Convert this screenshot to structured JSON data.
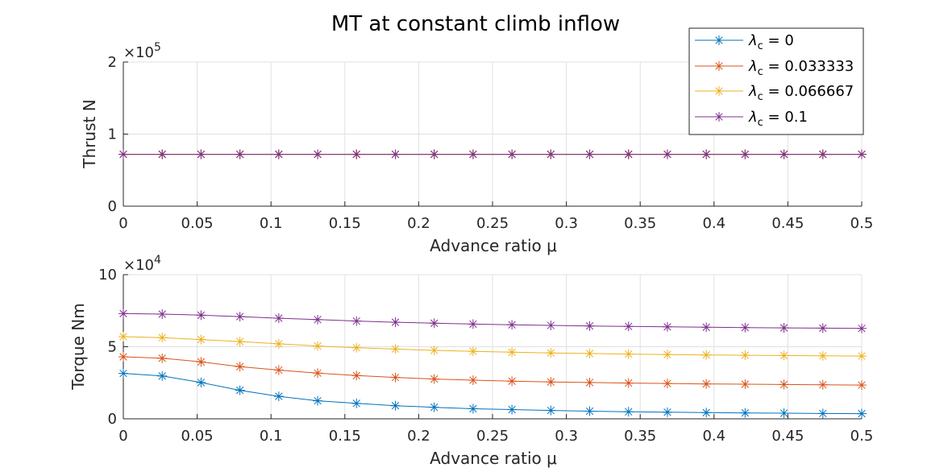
{
  "chart_data": {
    "title": "MT at constant climb inflow",
    "legend": {
      "location": "top-right",
      "entries": [
        {
          "symbol": "λ",
          "subscript": "c",
          "rest": " = 0"
        },
        {
          "symbol": "λ",
          "subscript": "c",
          "rest": " = 0.033333"
        },
        {
          "symbol": "λ",
          "subscript": "c",
          "rest": " = 0.066667"
        },
        {
          "symbol": "λ",
          "subscript": "c",
          "rest": " = 0.1"
        }
      ]
    },
    "colors": [
      "#0072BD",
      "#D95319",
      "#EDB120",
      "#7E2F8E"
    ],
    "marker": "asterisk",
    "x": [
      0,
      0.026316,
      0.052632,
      0.078947,
      0.105263,
      0.131579,
      0.157895,
      0.184211,
      0.210526,
      0.236842,
      0.263158,
      0.289474,
      0.315789,
      0.342105,
      0.368421,
      0.394737,
      0.421053,
      0.447368,
      0.473684,
      0.5
    ],
    "xticks": [
      "0",
      "0.05",
      "0.1",
      "0.15",
      "0.2",
      "0.25",
      "0.3",
      "0.35",
      "0.4",
      "0.45",
      "0.5"
    ],
    "xlim": [
      0,
      0.5
    ],
    "grid": true,
    "panels": [
      {
        "type": "line",
        "ylabel": "Thrust N",
        "xlabel": "Advance ratio μ",
        "ylim": [
          0,
          200000
        ],
        "yticks": [
          "0",
          "1",
          "2"
        ],
        "yexp_base": "×10",
        "yexp_power": "5",
        "series": [
          {
            "name": "λc = 0",
            "values": [
              72000,
              72000,
              72000,
              72000,
              72000,
              72000,
              72000,
              72000,
              72000,
              72000,
              72000,
              72000,
              72000,
              72000,
              72000,
              72000,
              72000,
              72000,
              72000,
              72000
            ]
          },
          {
            "name": "λc = 0.033333",
            "values": [
              72000,
              72000,
              72000,
              72000,
              72000,
              72000,
              72000,
              72000,
              72000,
              72000,
              72000,
              72000,
              72000,
              72000,
              72000,
              72000,
              72000,
              72000,
              72000,
              72000
            ]
          },
          {
            "name": "λc = 0.066667",
            "values": [
              72000,
              72000,
              72000,
              72000,
              72000,
              72000,
              72000,
              72000,
              72000,
              72000,
              72000,
              72000,
              72000,
              72000,
              72000,
              72000,
              72000,
              72000,
              72000,
              72000
            ]
          },
          {
            "name": "λc = 0.1",
            "values": [
              72000,
              72000,
              72000,
              72000,
              72000,
              72000,
              72000,
              72000,
              72000,
              72000,
              72000,
              72000,
              72000,
              72000,
              72000,
              72000,
              72000,
              72000,
              72000,
              72000
            ]
          }
        ]
      },
      {
        "type": "line",
        "ylabel": "Torque Nm",
        "xlabel": "Advance ratio μ",
        "ylim": [
          0,
          100000
        ],
        "yticks": [
          "0",
          "5",
          "10"
        ],
        "yexp_base": "×10",
        "yexp_power": "4",
        "series": [
          {
            "name": "λc = 0",
            "values": [
              31500,
              29700,
              25200,
              19800,
              15600,
              12500,
              10700,
              9100,
              8000,
              7000,
              6400,
              5800,
              5300,
              4900,
              4600,
              4300,
              4100,
              3900,
              3700,
              3600
            ]
          },
          {
            "name": "λc = 0.033333",
            "values": [
              43000,
              42000,
              39500,
              36200,
              33800,
              31700,
              30000,
              28700,
              27600,
              26800,
              26100,
              25600,
              25200,
              24800,
              24500,
              24200,
              24000,
              23800,
              23600,
              23400
            ]
          },
          {
            "name": "λc = 0.066667",
            "values": [
              57000,
              56300,
              55000,
              53600,
              52000,
              50500,
              49300,
              48400,
              47500,
              46800,
              46200,
              45700,
              45300,
              44900,
              44600,
              44300,
              44100,
              43900,
              43700,
              43500
            ]
          },
          {
            "name": "λc = 0.1",
            "values": [
              73000,
              72600,
              71900,
              70900,
              69800,
              68800,
              67800,
              67000,
              66300,
              65700,
              65200,
              64800,
              64400,
              64100,
              63800,
              63500,
              63300,
              63100,
              62900,
              62700
            ]
          }
        ]
      }
    ]
  }
}
